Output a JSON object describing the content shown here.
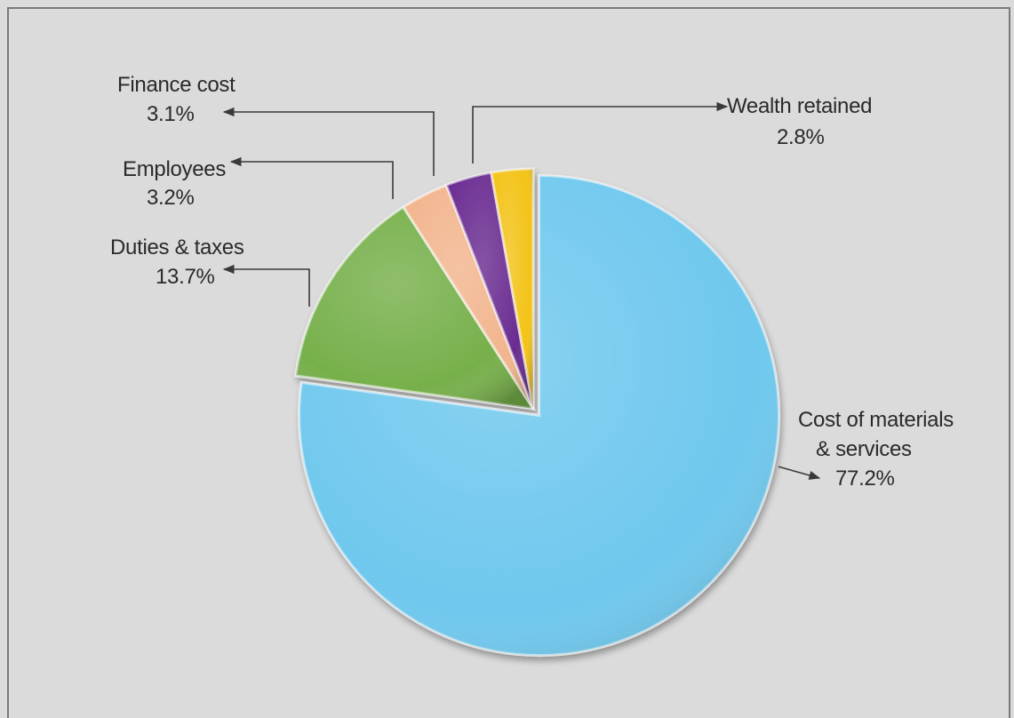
{
  "chart_data": {
    "type": "pie",
    "slices": [
      {
        "label": "Cost of materials & services",
        "label_lines": [
          "Cost of materials",
          "& services"
        ],
        "value": 77.2,
        "value_label": "77.2%",
        "color": "#6fc8ee"
      },
      {
        "label": "Duties & taxes",
        "label_lines": [
          "Duties & taxes"
        ],
        "value": 13.7,
        "value_label": "13.7%",
        "color": "#77b04b"
      },
      {
        "label": "Employees",
        "label_lines": [
          "Employees"
        ],
        "value": 3.2,
        "value_label": "3.2%",
        "color": "#f2b58e"
      },
      {
        "label": "Finance cost",
        "label_lines": [
          "Finance cost"
        ],
        "value": 3.1,
        "value_label": "3.1%",
        "color": "#6a2c91"
      },
      {
        "label": "Wealth retained",
        "label_lines": [
          "Wealth retained"
        ],
        "value": 2.8,
        "value_label": "2.8%",
        "color": "#f3c318"
      }
    ],
    "start_angle_deg": 0,
    "direction": "clockwise",
    "exploded_slice": "Cost of materials & services"
  }
}
